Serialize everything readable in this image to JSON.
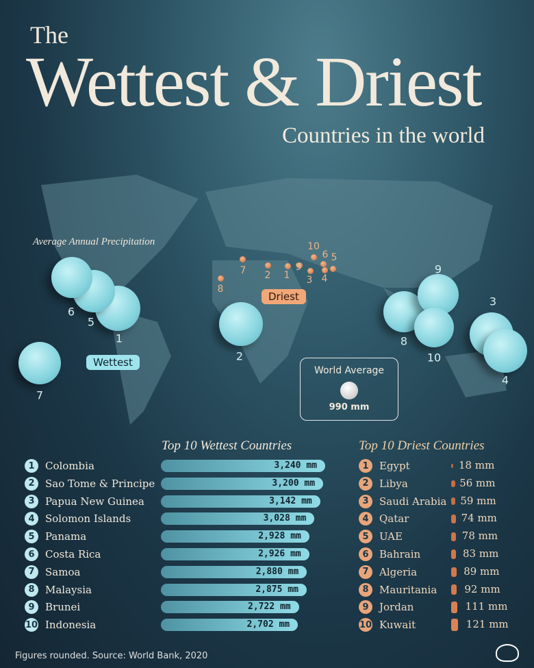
{
  "title": {
    "the": "The",
    "main": "Wettest & Driest",
    "sub": "Countries in the world"
  },
  "map": {
    "avg_label": "Average Annual Precipitation",
    "wettest_tag": "Wettest",
    "driest_tag": "Driest",
    "world_average": {
      "label": "World Average",
      "value": "990 mm"
    },
    "wet_ranks": [
      "1",
      "2",
      "3",
      "4",
      "5",
      "6",
      "7",
      "8",
      "9",
      "10"
    ],
    "dry_ranks": [
      "1",
      "2",
      "3",
      "4",
      "5",
      "6",
      "7",
      "8",
      "9",
      "10"
    ]
  },
  "colors": {
    "wet": "#8fdbe6",
    "dry": "#c86a3c",
    "background": "#1b3646"
  },
  "chart_data": [
    {
      "type": "bar",
      "title": "Top 10 Wettest Countries",
      "unit": "mm",
      "categories": [
        "Colombia",
        "Sao Tome & Principe",
        "Papua New Guinea",
        "Solomon Islands",
        "Panama",
        "Costa Rica",
        "Samoa",
        "Malaysia",
        "Brunei",
        "Indonesia"
      ],
      "values": [
        3240,
        3200,
        3142,
        3028,
        2928,
        2926,
        2880,
        2875,
        2722,
        2702
      ],
      "labels": [
        "3,240 mm",
        "3,200 mm",
        "3,142 mm",
        "3,028 mm",
        "2,928 mm",
        "2,926 mm",
        "2,880 mm",
        "2,875 mm",
        "2,722 mm",
        "2,702 mm"
      ]
    },
    {
      "type": "bar",
      "title": "Top 10 Driest Countries",
      "unit": "mm",
      "categories": [
        "Egypt",
        "Libya",
        "Saudi Arabia",
        "Qatar",
        "UAE",
        "Bahrain",
        "Algeria",
        "Mauritania",
        "Jordan",
        "Kuwait"
      ],
      "values": [
        18,
        56,
        59,
        74,
        78,
        83,
        89,
        92,
        111,
        121
      ],
      "labels": [
        "18 mm",
        "56 mm",
        "59 mm",
        "74 mm",
        "78 mm",
        "83 mm",
        "89 mm",
        "92 mm",
        "111 mm",
        "121 mm"
      ]
    }
  ],
  "footer": "Figures rounded. Source: World Bank, 2020"
}
